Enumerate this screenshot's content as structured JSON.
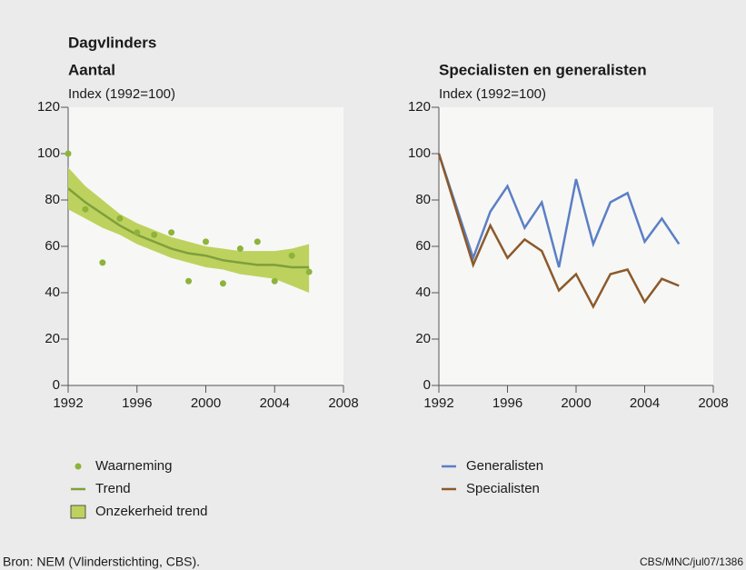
{
  "header": "Dagvlinders",
  "footer": {
    "source": "Bron: NEM (Vlinderstichting, CBS).",
    "code": "CBS/MNC/jul07/1386"
  },
  "chart_data": [
    {
      "type": "line",
      "title": "Aantal",
      "y_label": "Index (1992=100)",
      "x": [
        1992,
        1993,
        1994,
        1995,
        1996,
        1997,
        1998,
        1999,
        2000,
        2001,
        2002,
        2003,
        2004,
        2005,
        2006
      ],
      "xlim": [
        1992,
        2008
      ],
      "xticks": [
        1992,
        1996,
        2000,
        2004,
        2008
      ],
      "ylim": [
        0,
        120
      ],
      "yticks": [
        0,
        20,
        40,
        60,
        80,
        100,
        120
      ],
      "series": [
        {
          "name": "Waarneming",
          "style": "points",
          "color": "#8db33a",
          "values": [
            100,
            76,
            53,
            72,
            66,
            65,
            66,
            45,
            62,
            44,
            59,
            62,
            45,
            56,
            49
          ]
        },
        {
          "name": "Trend",
          "style": "line",
          "color": "#7f9f3c",
          "values": [
            85,
            79,
            74,
            69,
            65,
            62,
            59,
            57,
            56,
            54,
            53,
            52,
            52,
            51,
            51
          ]
        },
        {
          "name": "Onzekerheid trend",
          "style": "band",
          "color": "#bdd25e",
          "upper": [
            94,
            86,
            80,
            74,
            70,
            67,
            64,
            62,
            60,
            59,
            58,
            58,
            58,
            59,
            61
          ],
          "lower": [
            76,
            72,
            68,
            65,
            61,
            58,
            55,
            53,
            51,
            50,
            48,
            47,
            46,
            43,
            40
          ]
        }
      ]
    },
    {
      "type": "line",
      "title": "Specialisten en generalisten",
      "y_label": "Index (1992=100)",
      "x": [
        1992,
        1994,
        1995,
        1996,
        1997,
        1998,
        1999,
        2000,
        2001,
        2002,
        2003,
        2004,
        2005,
        2006
      ],
      "xlim": [
        1992,
        2008
      ],
      "xticks": [
        1992,
        1996,
        2000,
        2004,
        2008
      ],
      "ylim": [
        0,
        120
      ],
      "yticks": [
        0,
        20,
        40,
        60,
        80,
        100,
        120
      ],
      "series": [
        {
          "name": "Generalisten",
          "style": "line",
          "color": "#5b7fc6",
          "values": [
            100,
            55,
            75,
            86,
            68,
            79,
            51,
            89,
            61,
            79,
            83,
            62,
            72,
            61
          ]
        },
        {
          "name": "Specialisten",
          "style": "line",
          "color": "#8b5a2b",
          "values": [
            100,
            52,
            69,
            55,
            63,
            58,
            41,
            48,
            34,
            48,
            50,
            36,
            46,
            43
          ]
        }
      ]
    }
  ]
}
